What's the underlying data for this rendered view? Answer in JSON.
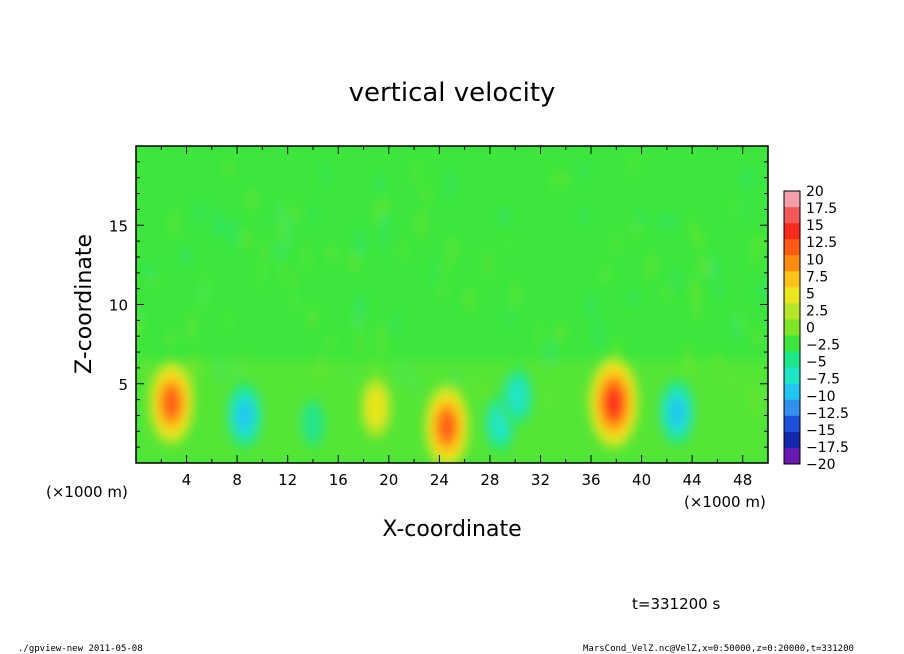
{
  "chart_data": {
    "type": "heatmap",
    "title": "vertical velocity",
    "xlabel": "X-coordinate",
    "ylabel": "Z-coordinate",
    "x_unit_label": "(×1000 m)",
    "y_unit_label": "(×1000 m)",
    "xlim": [
      0,
      50
    ],
    "ylim": [
      0,
      20
    ],
    "x_ticks": [
      "4",
      "8",
      "12",
      "16",
      "20",
      "24",
      "28",
      "32",
      "36",
      "40",
      "44",
      "48"
    ],
    "y_ticks": [
      "5",
      "10",
      "15"
    ],
    "colorbar": {
      "labels": [
        "20",
        "17.5",
        "15",
        "12.5",
        "10",
        "7.5",
        "5",
        "2.5",
        "0",
        "−2.5",
        "−5",
        "−7.5",
        "−10",
        "−12.5",
        "−15",
        "−17.5",
        "−20"
      ],
      "levels": [
        20,
        17.5,
        15,
        12.5,
        10,
        7.5,
        5,
        2.5,
        0,
        -2.5,
        -5,
        -7.5,
        -10,
        -12.5,
        -15,
        -17.5,
        -20
      ],
      "colors": [
        "#f2a0a8",
        "#f25a5a",
        "#ff2a1a",
        "#ff5a14",
        "#ff8c10",
        "#ffc41a",
        "#e8e61e",
        "#b4e628",
        "#7ee628",
        "#3ce63c",
        "#20e68a",
        "#20e6c8",
        "#20c6f0",
        "#3090f0",
        "#2050e0",
        "#1428b0",
        "#6a1ab4"
      ],
      "background_color": "#3ce63c"
    },
    "features": [
      {
        "x": 2.8,
        "z": 3.8,
        "value": 12.5
      },
      {
        "x": 8.6,
        "z": 3.0,
        "value": -10
      },
      {
        "x": 14,
        "z": 2.5,
        "value": -5
      },
      {
        "x": 19,
        "z": 3.5,
        "value": 5
      },
      {
        "x": 24.6,
        "z": 2.3,
        "value": 12.5
      },
      {
        "x": 28.8,
        "z": 2.5,
        "value": -7.5
      },
      {
        "x": 30.2,
        "z": 4.2,
        "value": -7.5
      },
      {
        "x": 37.8,
        "z": 3.8,
        "value": 15
      },
      {
        "x": 42.8,
        "z": 3.2,
        "value": -10
      }
    ],
    "time_label": "t=331200 s"
  },
  "footer": {
    "left": "./gpview-new  2011-05-08",
    "right": "MarsCond_VelZ.nc@VelZ,x=0:50000,z=0:20000,t=331200"
  }
}
